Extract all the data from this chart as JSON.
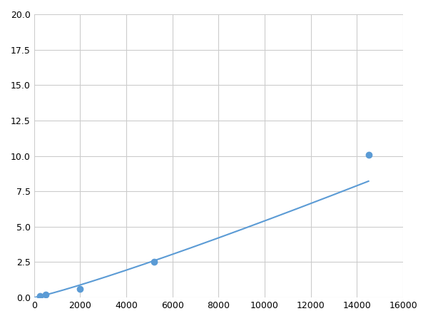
{
  "x_points": [
    250,
    500,
    2000,
    5200,
    14500
  ],
  "y_points": [
    0.1,
    0.2,
    0.6,
    2.55,
    10.1
  ],
  "line_color": "#5b9bd5",
  "marker_color": "#5b9bd5",
  "marker_size": 6,
  "xlim": [
    0,
    16000
  ],
  "ylim": [
    0,
    20
  ],
  "xticks": [
    0,
    2000,
    4000,
    6000,
    8000,
    10000,
    12000,
    14000,
    16000
  ],
  "yticks": [
    0.0,
    2.5,
    5.0,
    7.5,
    10.0,
    12.5,
    15.0,
    17.5,
    20.0
  ],
  "grid_color": "#cccccc",
  "background_color": "#ffffff",
  "figsize": [
    6.0,
    4.5
  ],
  "dpi": 100
}
